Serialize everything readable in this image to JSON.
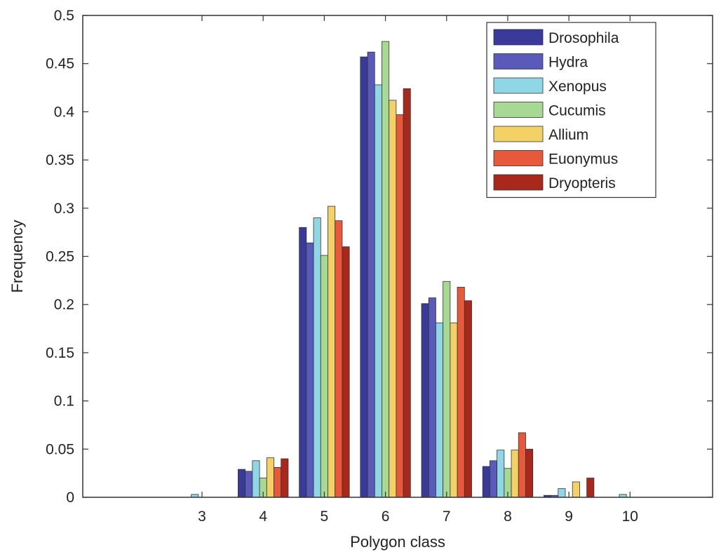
{
  "chart_data": {
    "type": "bar",
    "xlabel": "Polygon class",
    "ylabel": "Frequency",
    "ylim": [
      0,
      0.5
    ],
    "yticks": [
      "0",
      "0.05",
      "0.1",
      "0.15",
      "0.2",
      "0.25",
      "0.3",
      "0.35",
      "0.4",
      "0.45",
      "0.5"
    ],
    "categories": [
      "3",
      "4",
      "5",
      "6",
      "7",
      "8",
      "9",
      "10"
    ],
    "grid": false,
    "legend_position": "top-right",
    "series": [
      {
        "name": "Drosophila",
        "color": "#3a3a9a",
        "values": [
          0,
          0.029,
          0.28,
          0.457,
          0.201,
          0.032,
          0.002,
          0
        ]
      },
      {
        "name": "Hydra",
        "color": "#5a5aba",
        "values": [
          0,
          0.027,
          0.264,
          0.462,
          0.207,
          0.038,
          0.002,
          0
        ]
      },
      {
        "name": "Xenopus",
        "color": "#8fd6e6",
        "values": [
          0.003,
          0.038,
          0.29,
          0.428,
          0.181,
          0.049,
          0.009,
          0.003
        ]
      },
      {
        "name": "Cucumis",
        "color": "#a8d994",
        "values": [
          0,
          0.02,
          0.251,
          0.473,
          0.224,
          0.03,
          0,
          0
        ]
      },
      {
        "name": "Allium",
        "color": "#f4d167",
        "values": [
          0,
          0.041,
          0.302,
          0.412,
          0.181,
          0.049,
          0.016,
          0
        ]
      },
      {
        "name": "Euonymus",
        "color": "#e8583a",
        "values": [
          0,
          0.031,
          0.287,
          0.397,
          0.218,
          0.067,
          0,
          0
        ]
      },
      {
        "name": "Dryopteris",
        "color": "#a8281c",
        "values": [
          0,
          0.04,
          0.26,
          0.424,
          0.204,
          0.05,
          0.02,
          0
        ]
      }
    ]
  }
}
